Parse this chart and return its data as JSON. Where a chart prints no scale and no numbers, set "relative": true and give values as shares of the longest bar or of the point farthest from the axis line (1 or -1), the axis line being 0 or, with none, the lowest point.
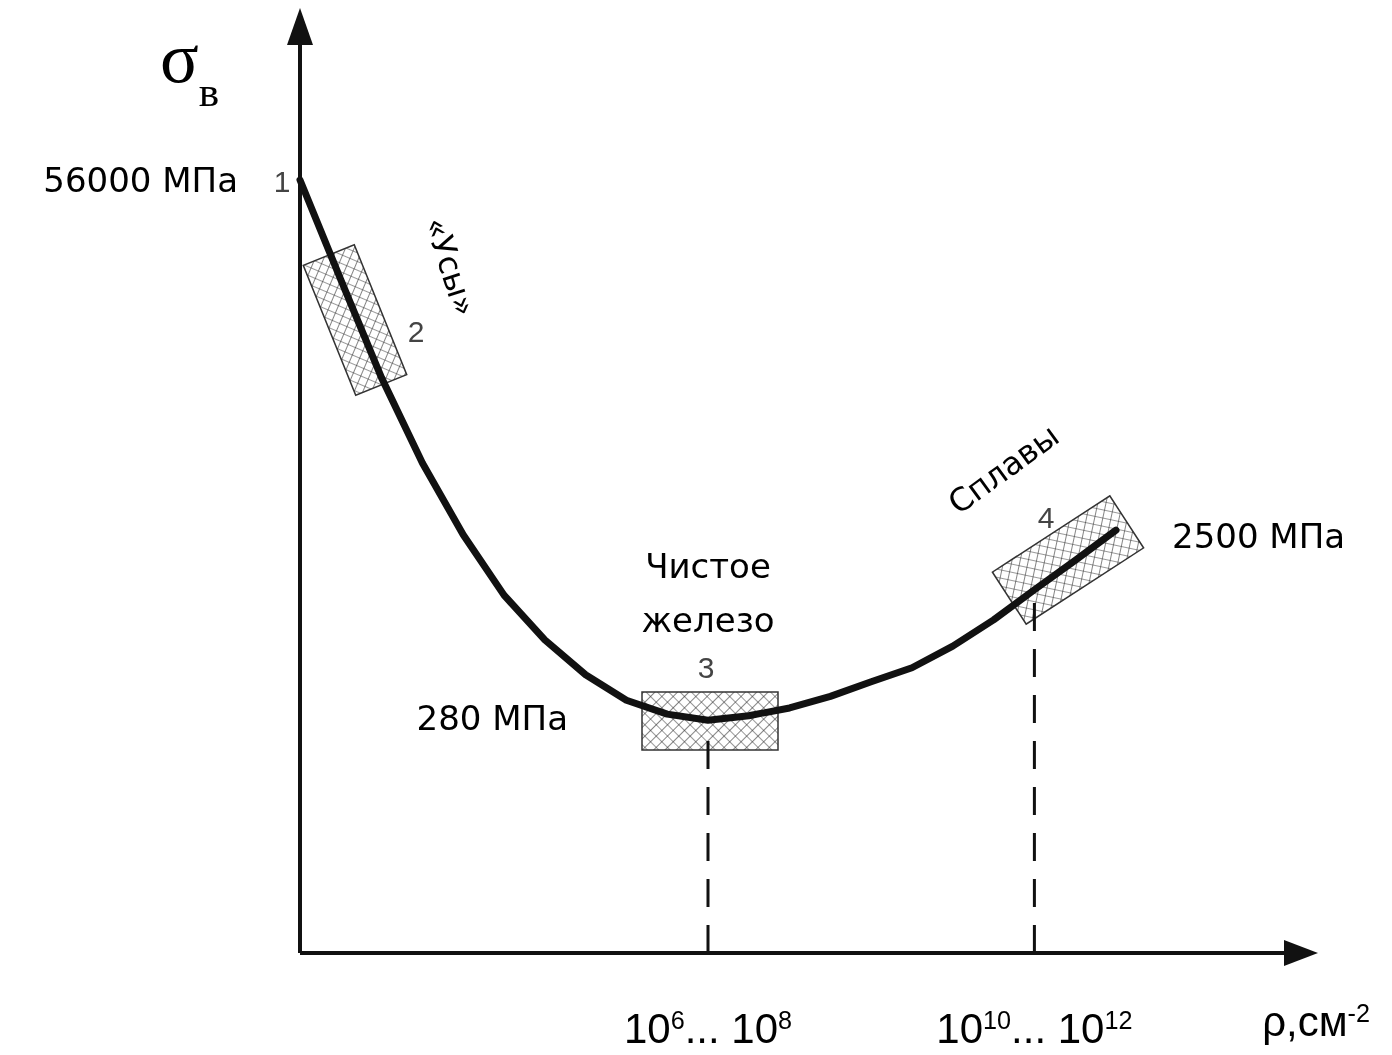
{
  "chart_data": {
    "type": "line",
    "relative": true,
    "xlabel": "ρ,см$^{-2}$",
    "ylabel": "σ$_{в}$",
    "categories": [
      null,
      null,
      null,
      null,
      null,
      null,
      null,
      null,
      null,
      null,
      "10$^{6}$... 10$^{8}$",
      null,
      null,
      null,
      null,
      null,
      null,
      null,
      "10$^{10}$... 10$^{12}$",
      null,
      null
    ],
    "series": [
      {
        "color": "#111111",
        "values": [
          1.0,
          0.871,
          0.744,
          0.634,
          0.541,
          0.463,
          0.405,
          0.36,
          0.327,
          0.309,
          0.301,
          0.307,
          0.317,
          0.332,
          0.351,
          0.369,
          0.397,
          0.431,
          0.47,
          0.508,
          0.547
        ]
      }
    ],
    "marker": "none",
    "line_style": "solid",
    "ref_lines": [
      {
        "axis": "x",
        "value": "10$^{6}$... 10$^{8}$",
        "line_style": "dashed"
      },
      {
        "axis": "x",
        "value": "10$^{10}$... 10$^{12}$",
        "line_style": "dashed"
      }
    ],
    "annotations": [
      "56000 МПа",
      "1",
      "«Усы»",
      "2",
      "Чистое железо",
      "3",
      "280 МПа",
      "Сплавы",
      "4",
      "2500 МПа"
    ]
  }
}
